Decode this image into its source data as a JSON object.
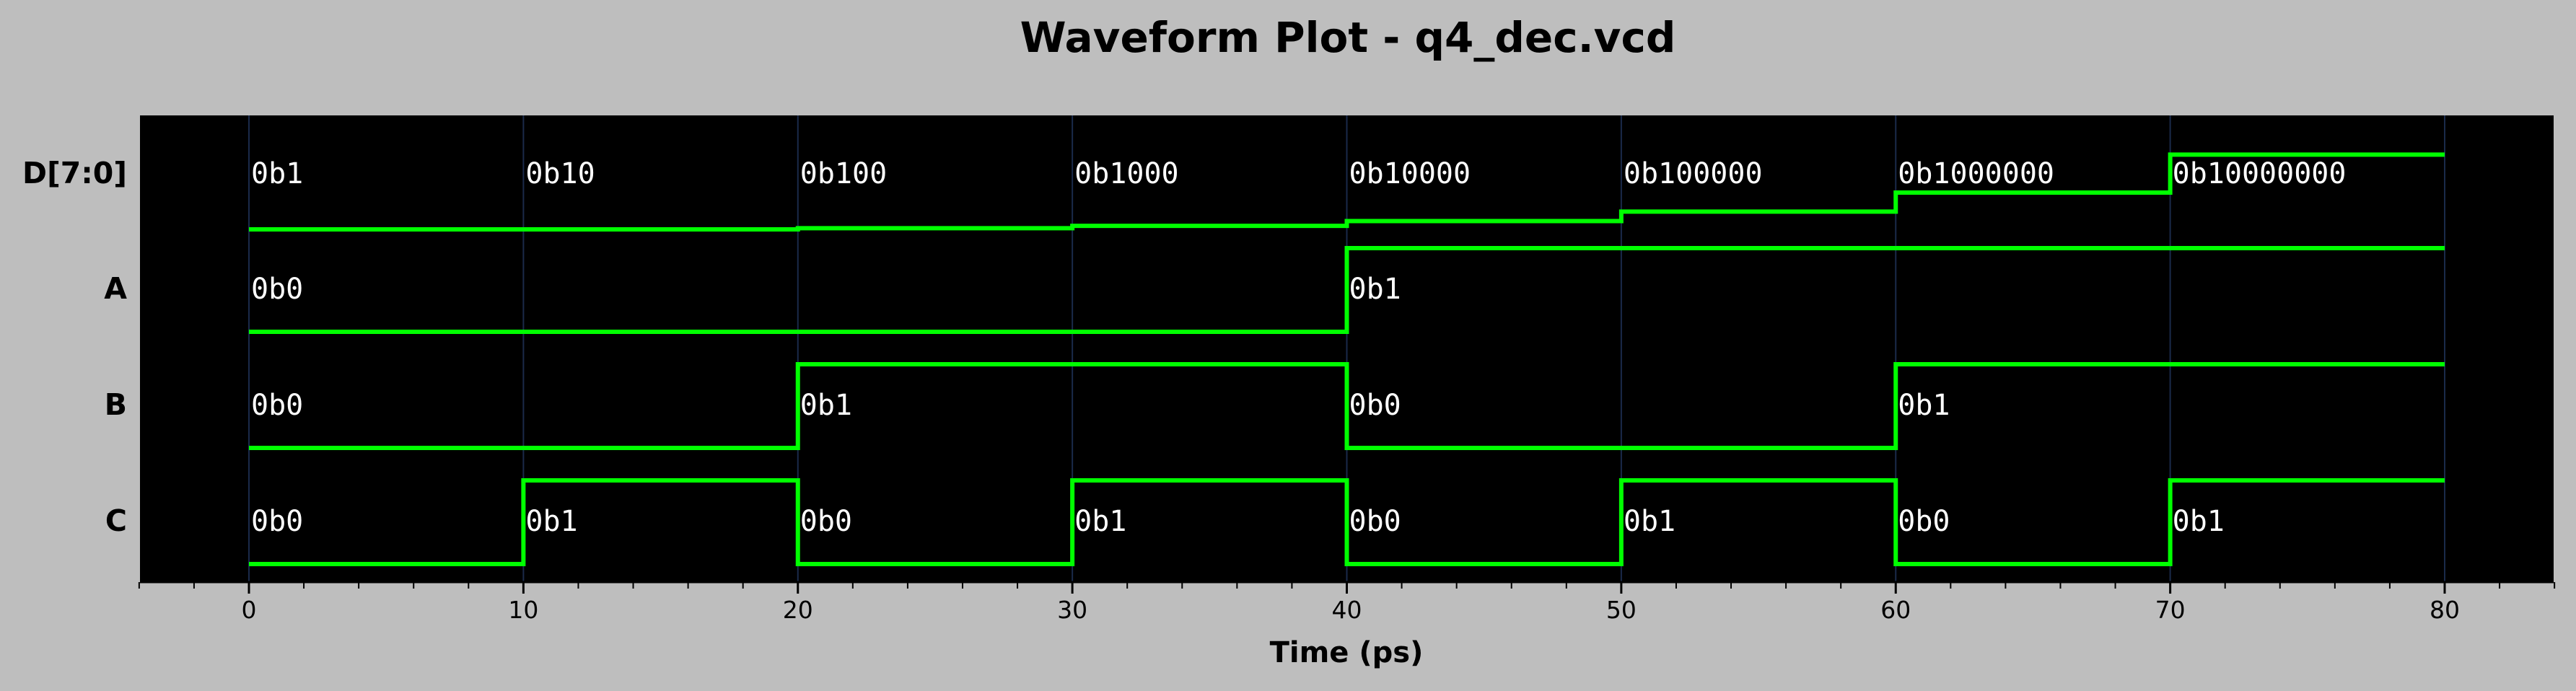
{
  "chart_data": {
    "type": "line",
    "title": "Waveform Plot - q4_dec.vcd",
    "xlabel": "Time (ps)",
    "xlim": [
      -4,
      84
    ],
    "xticks": [
      0,
      10,
      20,
      30,
      40,
      50,
      60,
      70,
      80
    ],
    "grid": true,
    "colors": {
      "page_background": "#bebebe",
      "plot_background": "#000000",
      "trace": "#00ff00",
      "value_text": "#ffffff",
      "grid": "#1a2a4a"
    },
    "signals": [
      {
        "name": "D[7:0]",
        "kind": "bus",
        "levels": 8,
        "segments": [
          {
            "start": 0,
            "end": 10,
            "value": "0b1",
            "level": 0
          },
          {
            "start": 10,
            "end": 20,
            "value": "0b10",
            "level": 0
          },
          {
            "start": 20,
            "end": 30,
            "value": "0b100",
            "level": 0.08
          },
          {
            "start": 30,
            "end": 40,
            "value": "0b1000",
            "level": 0.25
          },
          {
            "start": 40,
            "end": 50,
            "value": "0b10000",
            "level": 0.58
          },
          {
            "start": 50,
            "end": 60,
            "value": "0b100000",
            "level": 1.25
          },
          {
            "start": 60,
            "end": 70,
            "value": "0b1000000",
            "level": 2.58
          },
          {
            "start": 70,
            "end": 80,
            "value": "0b10000000",
            "level": 5.25
          }
        ]
      },
      {
        "name": "A",
        "kind": "bit",
        "segments": [
          {
            "start": 0,
            "end": 40,
            "value": "0b0",
            "level": 0
          },
          {
            "start": 40,
            "end": 80,
            "value": "0b1",
            "level": 1
          }
        ]
      },
      {
        "name": "B",
        "kind": "bit",
        "segments": [
          {
            "start": 0,
            "end": 20,
            "value": "0b0",
            "level": 0
          },
          {
            "start": 20,
            "end": 40,
            "value": "0b1",
            "level": 1
          },
          {
            "start": 40,
            "end": 60,
            "value": "0b0",
            "level": 0
          },
          {
            "start": 60,
            "end": 80,
            "value": "0b1",
            "level": 1
          }
        ]
      },
      {
        "name": "C",
        "kind": "bit",
        "segments": [
          {
            "start": 0,
            "end": 10,
            "value": "0b0",
            "level": 0
          },
          {
            "start": 10,
            "end": 20,
            "value": "0b1",
            "level": 1
          },
          {
            "start": 20,
            "end": 30,
            "value": "0b0",
            "level": 0
          },
          {
            "start": 30,
            "end": 40,
            "value": "0b1",
            "level": 1
          },
          {
            "start": 40,
            "end": 50,
            "value": "0b0",
            "level": 0
          },
          {
            "start": 50,
            "end": 60,
            "value": "0b1",
            "level": 1
          },
          {
            "start": 60,
            "end": 70,
            "value": "0b0",
            "level": 0
          },
          {
            "start": 70,
            "end": 80,
            "value": "0b1",
            "level": 1
          }
        ]
      }
    ]
  }
}
